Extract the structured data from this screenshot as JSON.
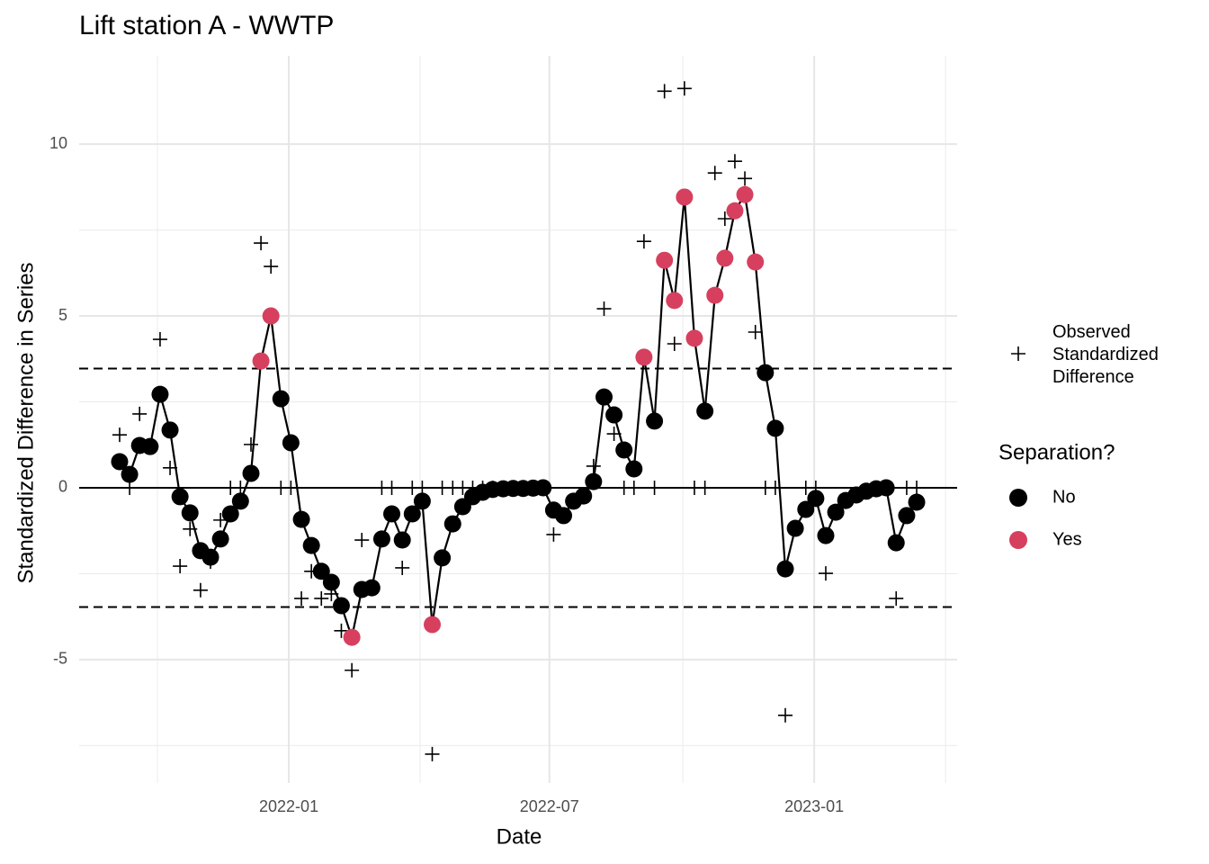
{
  "chart_data": {
    "type": "line",
    "title": "Lift station A - WWTP",
    "x_label": "Date",
    "y_label": "Standardized Difference in Series",
    "xlim": [
      2021.601,
      2023.272
    ],
    "ylim": [
      -8.59,
      12.57
    ],
    "xticks": [
      {
        "value": 2022.0,
        "label": "2022-01"
      },
      {
        "value": 2022.496,
        "label": "2022-07"
      },
      {
        "value": 2023.0,
        "label": "2023-01"
      }
    ],
    "x_minor_ticks": [
      2021.75,
      2022.25,
      2022.75,
      2023.25
    ],
    "yticks": [
      -5,
      0,
      5,
      10
    ],
    "y_minor_ticks": [
      -7.5,
      -2.5,
      2.5,
      7.5
    ],
    "grid": true,
    "hlines": [
      {
        "value": 0,
        "style": "solid"
      },
      {
        "value": 3.47,
        "style": "dashed"
      },
      {
        "value": -3.47,
        "style": "dashed"
      }
    ],
    "x": [
      2021.678,
      2021.697,
      2021.716,
      2021.736,
      2021.755,
      2021.774,
      2021.793,
      2021.812,
      2021.832,
      2021.851,
      2021.87,
      2021.889,
      2021.908,
      2021.928,
      2021.947,
      2021.966,
      2021.985,
      2022.004,
      2022.024,
      2022.043,
      2022.062,
      2022.081,
      2022.1,
      2022.12,
      2022.139,
      2022.158,
      2022.177,
      2022.196,
      2022.216,
      2022.235,
      2022.254,
      2022.273,
      2022.292,
      2022.312,
      2022.331,
      2022.35,
      2022.369,
      2022.388,
      2022.408,
      2022.427,
      2022.446,
      2022.465,
      2022.484,
      2022.504,
      2022.523,
      2022.542,
      2022.561,
      2022.58,
      2022.6,
      2022.619,
      2022.638,
      2022.657,
      2022.676,
      2022.696,
      2022.715,
      2022.734,
      2022.753,
      2022.772,
      2022.792,
      2022.811,
      2022.83,
      2022.849,
      2022.868,
      2022.888,
      2022.907,
      2022.926,
      2022.945,
      2022.964,
      2022.984,
      2023.003,
      2023.022,
      2023.041,
      2023.06,
      2023.08,
      2023.099,
      2023.118,
      2023.137,
      2023.156,
      2023.176,
      2023.195
    ],
    "smoothed": {
      "color": "#000000",
      "values": [
        0.76,
        0.39,
        1.23,
        1.2,
        2.72,
        1.68,
        -0.26,
        -0.73,
        -1.83,
        -2.02,
        -1.49,
        -0.76,
        -0.39,
        0.42,
        3.69,
        5.0,
        2.59,
        1.31,
        -0.92,
        -1.68,
        -2.43,
        -2.75,
        -3.43,
        -4.35,
        -2.96,
        -2.91,
        -1.49,
        -0.76,
        -1.52,
        -0.76,
        -0.39,
        -3.98,
        -2.04,
        -1.05,
        -0.55,
        -0.26,
        -0.13,
        -0.05,
        -0.03,
        -0.02,
        -0.02,
        -0.01,
        0,
        -0.65,
        -0.81,
        -0.39,
        -0.24,
        0.18,
        2.64,
        2.12,
        1.1,
        0.55,
        3.8,
        1.94,
        6.62,
        5.45,
        8.46,
        4.35,
        2.23,
        5.6,
        6.68,
        8.06,
        8.53,
        6.57,
        3.35,
        1.73,
        -2.36,
        -1.18,
        -0.63,
        -0.31,
        -1.39,
        -0.71,
        -0.37,
        -0.21,
        -0.1,
        -0.03,
        0,
        -1.6,
        -0.81,
        -0.42
      ],
      "separation": [
        "No",
        "No",
        "No",
        "No",
        "No",
        "No",
        "No",
        "No",
        "No",
        "No",
        "No",
        "No",
        "No",
        "No",
        "Yes",
        "Yes",
        "No",
        "No",
        "No",
        "No",
        "No",
        "No",
        "No",
        "Yes",
        "No",
        "No",
        "No",
        "No",
        "No",
        "No",
        "No",
        "Yes",
        "No",
        "No",
        "No",
        "No",
        "No",
        "No",
        "No",
        "No",
        "No",
        "No",
        "No",
        "No",
        "No",
        "No",
        "No",
        "No",
        "No",
        "No",
        "No",
        "No",
        "Yes",
        "No",
        "Yes",
        "Yes",
        "Yes",
        "Yes",
        "No",
        "Yes",
        "Yes",
        "Yes",
        "Yes",
        "Yes",
        "No",
        "No",
        "No",
        "No",
        "No",
        "No",
        "No",
        "No",
        "No",
        "No",
        "No",
        "No",
        "No",
        "No",
        "No",
        "No"
      ]
    },
    "observed": {
      "name": "Observed Standardized Difference",
      "color": "#000000",
      "values": [
        1.54,
        0,
        2.15,
        1.2,
        4.32,
        0.58,
        -2.28,
        -1.2,
        -2.98,
        -2.15,
        -0.94,
        0,
        0,
        1.26,
        7.12,
        6.44,
        0,
        0,
        -3.22,
        -2.43,
        -3.22,
        -3.09,
        -4.16,
        -5.31,
        -1.52,
        -2.91,
        0,
        0,
        -2.33,
        0,
        0,
        -7.75,
        0,
        0,
        0,
        0,
        0,
        0,
        0,
        0,
        0,
        0,
        0,
        -1.36,
        -0.81,
        -0.39,
        -0.24,
        0.63,
        5.21,
        1.57,
        0,
        0,
        7.17,
        0,
        11.54,
        4.19,
        11.62,
        0,
        0,
        9.16,
        7.83,
        9.5,
        9.0,
        4.53,
        0,
        0,
        -6.62,
        -1.18,
        0,
        0,
        -2.49,
        -0.71,
        -0.37,
        -0.21,
        -0.1,
        -0.03,
        0,
        -3.22,
        0,
        0
      ]
    },
    "separation_legend": {
      "title": "Separation?",
      "levels": [
        {
          "label": "No",
          "color": "#000000"
        },
        {
          "label": "Yes",
          "color": "#d6405e"
        }
      ]
    }
  }
}
